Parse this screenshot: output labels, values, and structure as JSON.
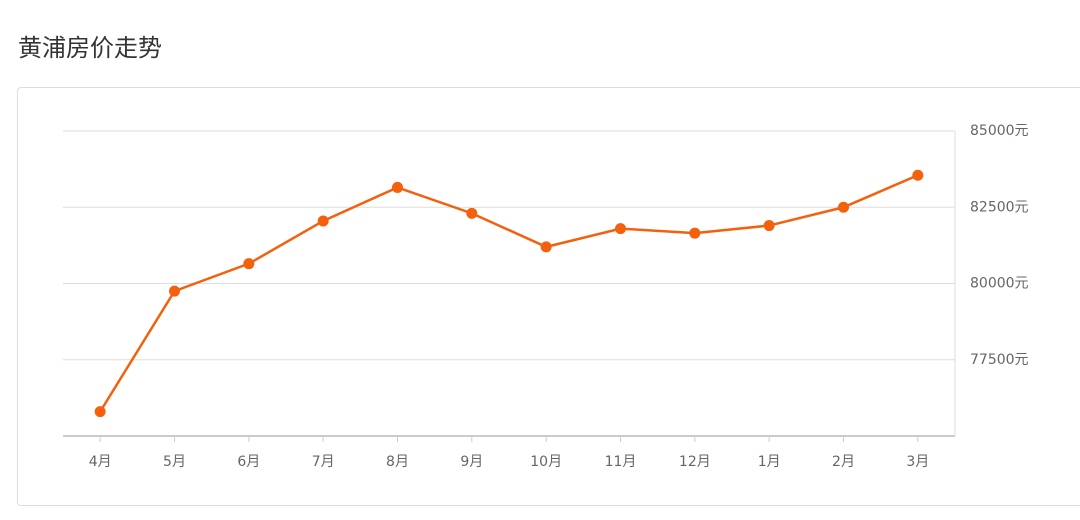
{
  "chart_data": {
    "type": "line",
    "title": "黄浦房价走势",
    "categories": [
      "4月",
      "5月",
      "6月",
      "7月",
      "8月",
      "9月",
      "10月",
      "11月",
      "12月",
      "1月",
      "2月",
      "3月"
    ],
    "series": [
      {
        "color": "#f4600c",
        "values": [
          75800,
          79750,
          80650,
          82050,
          83150,
          82300,
          81200,
          81800,
          81650,
          81900,
          82500,
          83550
        ]
      }
    ],
    "ylim": [
      75000,
      85000
    ],
    "yticks": [
      {
        "value": 77500,
        "label": "77500元"
      },
      {
        "value": 80000,
        "label": "80000元"
      },
      {
        "value": 82500,
        "label": "82500元"
      },
      {
        "value": 85000,
        "label": "85000元"
      }
    ],
    "grid": true
  }
}
